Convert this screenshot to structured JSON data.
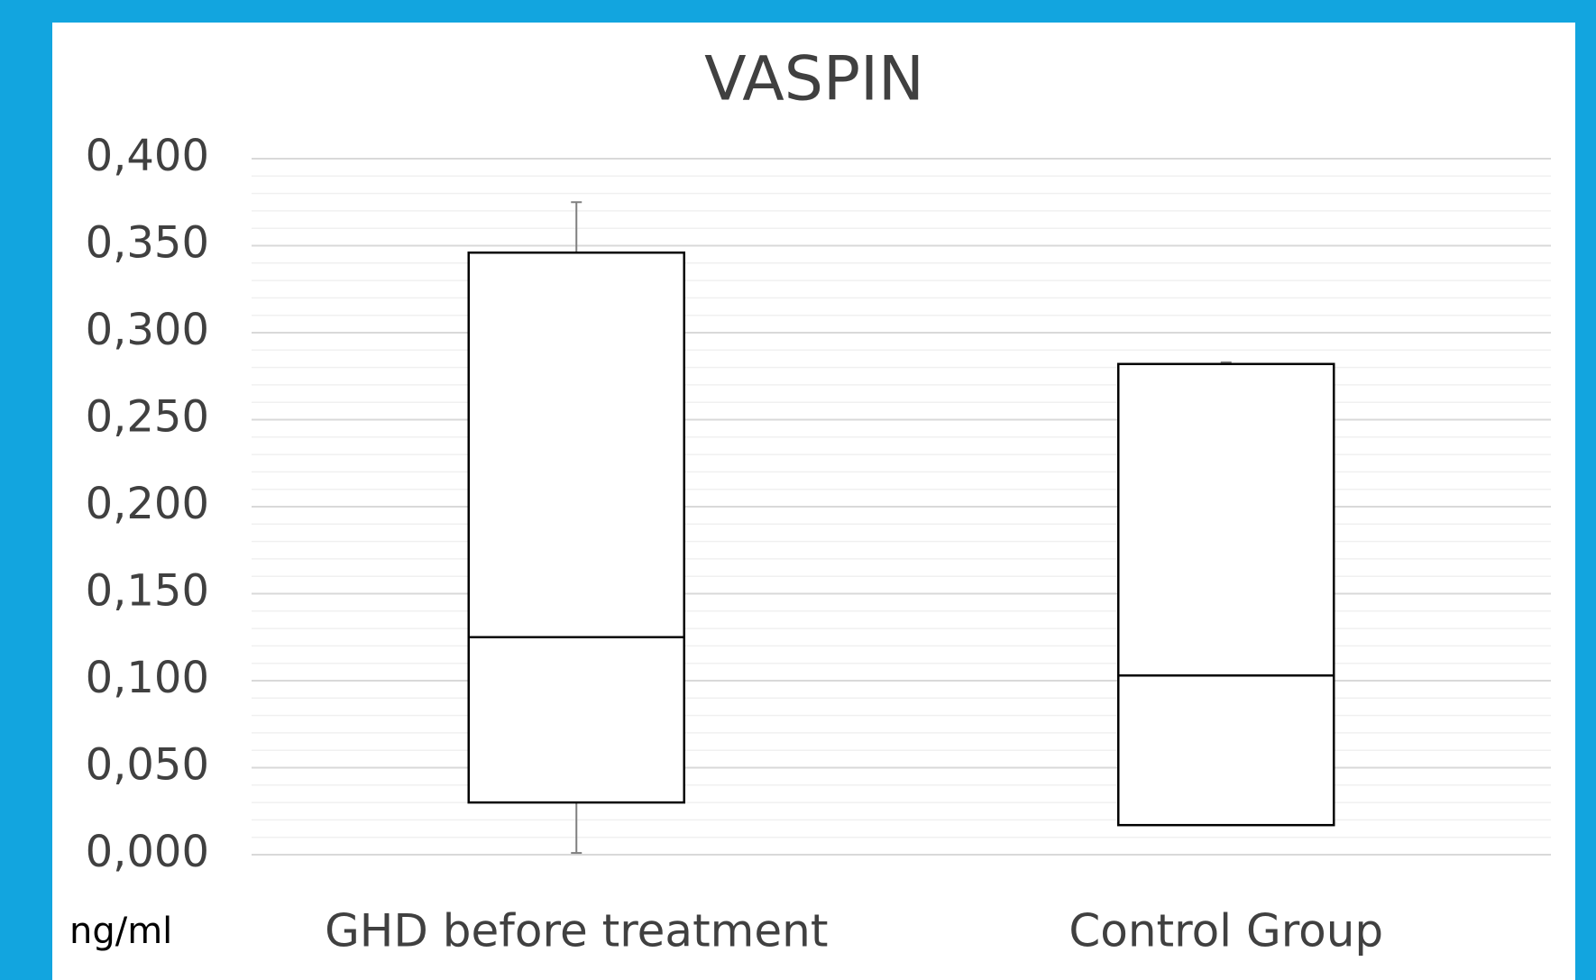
{
  "chart_data": {
    "type": "box",
    "title": "VASPIN",
    "ylabel": "ng/ml",
    "categories": [
      "GHD before treatment",
      "Control Group"
    ],
    "boxes": [
      {
        "min": 0.001,
        "q1": 0.03,
        "median": 0.125,
        "q3": 0.346,
        "max": 0.375
      },
      {
        "min": 0.017,
        "q1": 0.017,
        "median": 0.103,
        "q3": 0.282,
        "max": 0.283
      }
    ],
    "color": "#ffffff",
    "ylim": [
      0,
      0.4
    ],
    "yticks": [
      {
        "value": 0,
        "label": "0,000"
      },
      {
        "value": 0.05,
        "label": "0,050"
      },
      {
        "value": 0.1,
        "label": "0,100"
      },
      {
        "value": 0.15,
        "label": "0,150"
      },
      {
        "value": 0.2,
        "label": "0,200"
      },
      {
        "value": 0.25,
        "label": "0,250"
      },
      {
        "value": 0.3,
        "label": "0,300"
      },
      {
        "value": 0.35,
        "label": "0,350"
      },
      {
        "value": 0.4,
        "label": "0,400"
      }
    ],
    "grid": true,
    "minor_grid": true
  }
}
